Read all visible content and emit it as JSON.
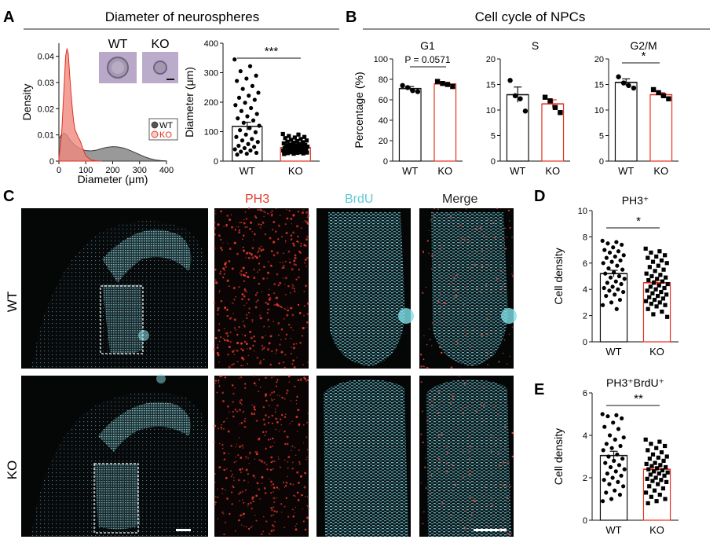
{
  "panels": {
    "A": "A",
    "B": "B",
    "C": "C",
    "D": "D",
    "E": "E"
  },
  "section_titles": {
    "A": "Diameter of neurospheres",
    "B": "Cell cycle of NPCs"
  },
  "colors": {
    "wt": "#555555",
    "ko": "#e3301f",
    "wt_fill": "#808080",
    "ko_fill": "#f08a7e",
    "cyan": "#6fd3dc",
    "red": "#e33b2e"
  },
  "chart_data": [
    {
      "id": "density",
      "type": "area",
      "xlabel": "Diameter (μm)",
      "ylabel": "Density",
      "xlim": [
        0,
        400
      ],
      "ylim": [
        0,
        0.045
      ],
      "xticks": [
        0,
        100,
        200,
        300,
        400
      ],
      "yticks": [
        0,
        0.01,
        0.02,
        0.03,
        0.04
      ],
      "legend": "bottom-right",
      "series": [
        {
          "name": "WT",
          "x": [
            0,
            10,
            20,
            30,
            40,
            60,
            80,
            100,
            120,
            140,
            160,
            180,
            200,
            220,
            240,
            260,
            280,
            300,
            320,
            340,
            360,
            380,
            400
          ],
          "values": [
            0.0085,
            0.0102,
            0.0107,
            0.0098,
            0.0082,
            0.006,
            0.0047,
            0.004,
            0.0039,
            0.0042,
            0.0048,
            0.0053,
            0.0055,
            0.0054,
            0.005,
            0.0043,
            0.0034,
            0.0025,
            0.0016,
            0.0009,
            0.0004,
            0.0002,
            0.0001
          ]
        },
        {
          "name": "KO",
          "x": [
            0,
            10,
            20,
            25,
            30,
            35,
            40,
            45,
            50,
            55,
            60,
            70,
            80,
            90,
            100,
            120,
            140,
            160
          ],
          "values": [
            0.001,
            0.01,
            0.03,
            0.04,
            0.043,
            0.041,
            0.033,
            0.026,
            0.02,
            0.015,
            0.012,
            0.0095,
            0.0075,
            0.0045,
            0.002,
            0.0004,
            0.0001,
            0
          ]
        }
      ],
      "inset_labels": [
        "WT",
        "KO"
      ]
    },
    {
      "id": "diameter",
      "type": "bar",
      "ylabel": "Diameter (μm)",
      "ylim": [
        0,
        400
      ],
      "yticks": [
        0,
        100,
        200,
        300,
        400
      ],
      "categories": [
        "WT",
        "KO"
      ],
      "values": [
        118,
        46
      ],
      "sem": [
        14,
        3
      ],
      "significance": "***",
      "points": {
        "WT": [
          345,
          322,
          305,
          290,
          280,
          272,
          255,
          245,
          232,
          222,
          215,
          208,
          198,
          190,
          180,
          170,
          160,
          152,
          145,
          138,
          130,
          120,
          112,
          105,
          98,
          90,
          82,
          75,
          70,
          65,
          58,
          52,
          48,
          44,
          40,
          36,
          32,
          28,
          25,
          22
        ],
        "KO": [
          92,
          90,
          85,
          82,
          80,
          78,
          75,
          72,
          70,
          68,
          66,
          64,
          62,
          60,
          58,
          56,
          55,
          54,
          52,
          51,
          50,
          49,
          48,
          47,
          46,
          45,
          44,
          43,
          42,
          41,
          40,
          39,
          38,
          37,
          36,
          35,
          34,
          33,
          32,
          31,
          30,
          30,
          29,
          28,
          27,
          26,
          25,
          24
        ]
      }
    },
    {
      "id": "g1",
      "type": "bar",
      "title": "G1",
      "ylabel": "Percentage (%)",
      "ylim": [
        0,
        100
      ],
      "yticks": [
        0,
        20,
        40,
        60,
        80,
        100
      ],
      "categories": [
        "WT",
        "KO"
      ],
      "values": [
        71,
        75.5
      ],
      "sem": [
        2,
        1.5
      ],
      "significance": "P = 0.0571",
      "points": {
        "WT": [
          74,
          72,
          69,
          68
        ],
        "KO": [
          78,
          76,
          75,
          73
        ]
      }
    },
    {
      "id": "s",
      "type": "bar",
      "title": "S",
      "ylim": [
        0,
        20
      ],
      "yticks": [
        0,
        5,
        10,
        15,
        20
      ],
      "categories": [
        "WT",
        "KO"
      ],
      "values": [
        13,
        11.2
      ],
      "sem": [
        1.5,
        0.8
      ],
      "significance": "",
      "points": {
        "WT": [
          15.8,
          12.8,
          12.2,
          9.8
        ],
        "KO": [
          12.5,
          11.8,
          10.5,
          9.5
        ]
      }
    },
    {
      "id": "g2m",
      "type": "bar",
      "title": "G2/M",
      "ylim": [
        0,
        20
      ],
      "yticks": [
        0,
        5,
        10,
        15,
        20
      ],
      "categories": [
        "WT",
        "KO"
      ],
      "values": [
        15.4,
        13
      ],
      "sem": [
        0.7,
        0.4
      ],
      "significance": "*",
      "points": {
        "WT": [
          16.5,
          15.3,
          14.8,
          14.3
        ],
        "KO": [
          14,
          13.4,
          12.8,
          12.2
        ]
      }
    },
    {
      "id": "ph3",
      "type": "bar",
      "title": "PH3⁺",
      "ylabel": "Cell density",
      "ylim": [
        0,
        10
      ],
      "yticks": [
        0,
        2,
        4,
        6,
        8,
        10
      ],
      "categories": [
        "WT",
        "KO"
      ],
      "values": [
        5.2,
        4.5
      ],
      "sem": [
        0.25,
        0.18
      ],
      "significance": "*",
      "points": {
        "WT": [
          7.7,
          7.6,
          7.5,
          7.4,
          7.2,
          7.0,
          6.9,
          6.8,
          6.6,
          6.5,
          6.4,
          6.2,
          6.1,
          6.0,
          5.8,
          5.6,
          5.5,
          5.3,
          5.2,
          5.0,
          4.9,
          4.8,
          4.6,
          4.5,
          4.4,
          4.2,
          4.1,
          4.0,
          3.9,
          3.8,
          3.6,
          3.5,
          3.2,
          3.0,
          2.8,
          2.5
        ],
        "KO": [
          7.1,
          6.9,
          6.8,
          6.6,
          6.5,
          6.4,
          6.2,
          6.1,
          6.0,
          5.8,
          5.7,
          5.5,
          5.4,
          5.2,
          5.1,
          5.0,
          4.9,
          4.8,
          4.7,
          4.6,
          4.5,
          4.4,
          4.3,
          4.2,
          4.1,
          4.0,
          3.9,
          3.8,
          3.7,
          3.6,
          3.5,
          3.4,
          3.3,
          3.2,
          3.1,
          3.0,
          2.9,
          2.8,
          2.7,
          2.5,
          2.3,
          2.1,
          1.9
        ]
      }
    },
    {
      "id": "ph3brdu",
      "type": "bar",
      "title": "PH3⁺BrdU⁺",
      "ylabel": "Cell density",
      "ylim": [
        0,
        6
      ],
      "yticks": [
        0,
        2,
        4,
        6
      ],
      "categories": [
        "WT",
        "KO"
      ],
      "values": [
        3.05,
        2.4
      ],
      "sem": [
        0.2,
        0.1
      ],
      "significance": "**",
      "points": {
        "WT": [
          5.0,
          4.95,
          4.9,
          4.8,
          4.6,
          4.4,
          4.3,
          4.0,
          3.9,
          3.8,
          3.6,
          3.5,
          3.4,
          3.3,
          3.1,
          3.0,
          2.9,
          2.8,
          2.7,
          2.6,
          2.5,
          2.4,
          2.3,
          2.2,
          2.1,
          2.0,
          1.9,
          1.8,
          1.7,
          1.6,
          1.4,
          1.3,
          1.2,
          1.0,
          0.9
        ],
        "KO": [
          3.8,
          3.7,
          3.6,
          3.5,
          3.4,
          3.3,
          3.2,
          3.1,
          3.0,
          2.95,
          2.9,
          2.8,
          2.7,
          2.65,
          2.6,
          2.55,
          2.5,
          2.45,
          2.4,
          2.35,
          2.3,
          2.25,
          2.2,
          2.15,
          2.1,
          2.0,
          1.95,
          1.9,
          1.85,
          1.8,
          1.7,
          1.6,
          1.5,
          1.4,
          1.3,
          1.2,
          1.1,
          1.0,
          0.9,
          0.8
        ]
      }
    }
  ],
  "micrographs": {
    "channel_labels": [
      "PH3",
      "BrdU",
      "Merge"
    ],
    "row_labels": [
      "WT",
      "KO"
    ]
  }
}
